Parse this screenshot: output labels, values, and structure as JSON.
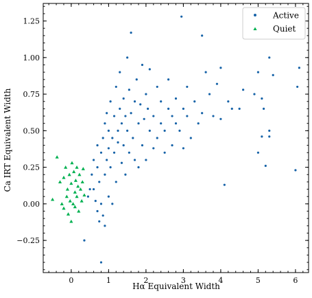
{
  "chart_data": {
    "type": "scatter",
    "xlabel": "Hα Equivalent Width",
    "ylabel": "Ca IRT Equivalent Width",
    "xlim": [
      -0.75,
      6.35
    ],
    "ylim": [
      -0.47,
      1.37
    ],
    "x_ticks": [
      0,
      1,
      2,
      3,
      4,
      5,
      6
    ],
    "y_ticks": [
      -0.25,
      0.0,
      0.25,
      0.5,
      0.75,
      1.0,
      1.25
    ],
    "y_tick_labels": [
      "−0.25",
      "0.00",
      "0.25",
      "0.50",
      "0.75",
      "1.00",
      "1.25"
    ],
    "grid": false,
    "legend_position": "top-right",
    "series": [
      {
        "name": "Active",
        "color": "#1763a8",
        "marker": "circle",
        "points": [
          [
            0.35,
            -0.25
          ],
          [
            0.45,
            0.05
          ],
          [
            0.5,
            0.1
          ],
          [
            0.55,
            0.2
          ],
          [
            0.6,
            0.3
          ],
          [
            0.6,
            0.1
          ],
          [
            0.65,
            0.02
          ],
          [
            0.7,
            -0.05
          ],
          [
            0.7,
            0.25
          ],
          [
            0.7,
            0.4
          ],
          [
            0.75,
            -0.12
          ],
          [
            0.75,
            0.15
          ],
          [
            0.8,
            0.0
          ],
          [
            0.8,
            0.35
          ],
          [
            0.8,
            -0.4
          ],
          [
            0.85,
            -0.08
          ],
          [
            0.85,
            0.45
          ],
          [
            0.9,
            0.55
          ],
          [
            0.9,
            0.2
          ],
          [
            0.9,
            -0.15
          ],
          [
            0.95,
            0.3
          ],
          [
            0.95,
            0.62
          ],
          [
            1.0,
            0.05
          ],
          [
            1.0,
            0.38
          ],
          [
            1.0,
            0.5
          ],
          [
            1.05,
            0.7
          ],
          [
            1.05,
            0.25
          ],
          [
            1.1,
            0.45
          ],
          [
            1.1,
            0.0
          ],
          [
            1.15,
            0.6
          ],
          [
            1.15,
            0.35
          ],
          [
            1.2,
            0.8
          ],
          [
            1.2,
            0.15
          ],
          [
            1.25,
            0.5
          ],
          [
            1.25,
            0.42
          ],
          [
            1.3,
            0.9
          ],
          [
            1.3,
            0.65
          ],
          [
            1.35,
            0.28
          ],
          [
            1.35,
            0.55
          ],
          [
            1.4,
            0.72
          ],
          [
            1.4,
            0.4
          ],
          [
            1.45,
            0.6
          ],
          [
            1.45,
            0.2
          ],
          [
            1.5,
            1.0
          ],
          [
            1.5,
            0.5
          ],
          [
            1.55,
            0.78
          ],
          [
            1.55,
            0.35
          ],
          [
            1.6,
            1.17
          ],
          [
            1.6,
            0.62
          ],
          [
            1.65,
            0.45
          ],
          [
            1.7,
            0.7
          ],
          [
            1.7,
            0.3
          ],
          [
            1.75,
            0.85
          ],
          [
            1.8,
            0.55
          ],
          [
            1.8,
            0.25
          ],
          [
            1.85,
            0.68
          ],
          [
            1.9,
            0.95
          ],
          [
            1.9,
            0.4
          ],
          [
            1.95,
            0.58
          ],
          [
            2.0,
            0.75
          ],
          [
            2.0,
            0.3
          ],
          [
            2.05,
            0.65
          ],
          [
            2.1,
            0.92
          ],
          [
            2.1,
            0.5
          ],
          [
            2.2,
            0.6
          ],
          [
            2.2,
            0.38
          ],
          [
            2.3,
            0.8
          ],
          [
            2.3,
            0.45
          ],
          [
            2.4,
            0.7
          ],
          [
            2.4,
            0.55
          ],
          [
            2.5,
            0.5
          ],
          [
            2.5,
            0.35
          ],
          [
            2.6,
            0.65
          ],
          [
            2.6,
            0.85
          ],
          [
            2.7,
            0.6
          ],
          [
            2.7,
            0.4
          ],
          [
            2.8,
            0.55
          ],
          [
            2.8,
            0.72
          ],
          [
            2.9,
            0.5
          ],
          [
            2.95,
            1.28
          ],
          [
            3.0,
            0.65
          ],
          [
            3.0,
            0.38
          ],
          [
            3.1,
            0.6
          ],
          [
            3.1,
            0.8
          ],
          [
            3.2,
            0.45
          ],
          [
            3.3,
            0.7
          ],
          [
            3.4,
            0.55
          ],
          [
            3.5,
            0.62
          ],
          [
            3.5,
            1.15
          ],
          [
            3.6,
            0.9
          ],
          [
            3.7,
            0.75
          ],
          [
            3.8,
            0.6
          ],
          [
            3.9,
            0.82
          ],
          [
            4.0,
            0.58
          ],
          [
            4.0,
            0.93
          ],
          [
            4.1,
            0.13
          ],
          [
            4.2,
            0.7
          ],
          [
            4.3,
            0.65
          ],
          [
            4.5,
            0.65
          ],
          [
            4.6,
            0.78
          ],
          [
            4.9,
            0.75
          ],
          [
            5.0,
            0.9
          ],
          [
            5.0,
            0.35
          ],
          [
            5.1,
            0.72
          ],
          [
            5.1,
            0.46
          ],
          [
            5.15,
            0.65
          ],
          [
            5.2,
            0.26
          ],
          [
            5.3,
            0.5
          ],
          [
            5.3,
            0.46
          ],
          [
            5.3,
            1.0
          ],
          [
            5.4,
            0.88
          ],
          [
            6.0,
            0.23
          ],
          [
            6.05,
            0.8
          ],
          [
            6.1,
            0.93
          ]
        ]
      },
      {
        "name": "Quiet",
        "color": "#00b050",
        "marker": "triangle",
        "points": [
          [
            -0.5,
            0.03
          ],
          [
            -0.38,
            0.32
          ],
          [
            -0.3,
            0.15
          ],
          [
            -0.25,
            0.0
          ],
          [
            -0.2,
            0.18
          ],
          [
            -0.2,
            -0.03
          ],
          [
            -0.15,
            0.25
          ],
          [
            -0.12,
            0.05
          ],
          [
            -0.1,
            0.1
          ],
          [
            -0.08,
            -0.07
          ],
          [
            -0.05,
            0.2
          ],
          [
            -0.03,
            0.02
          ],
          [
            0.0,
            -0.12
          ],
          [
            0.0,
            0.14
          ],
          [
            0.02,
            0.28
          ],
          [
            0.05,
            0.0
          ],
          [
            0.07,
            0.22
          ],
          [
            0.1,
            0.08
          ],
          [
            0.1,
            -0.02
          ],
          [
            0.12,
            0.16
          ],
          [
            0.15,
            0.05
          ],
          [
            0.15,
            0.25
          ],
          [
            0.18,
            0.12
          ],
          [
            0.2,
            -0.05
          ],
          [
            0.22,
            0.2
          ],
          [
            0.25,
            0.1
          ],
          [
            0.28,
            0.02
          ],
          [
            0.3,
            0.15
          ],
          [
            0.32,
            0.24
          ],
          [
            0.35,
            0.06
          ]
        ]
      }
    ]
  }
}
